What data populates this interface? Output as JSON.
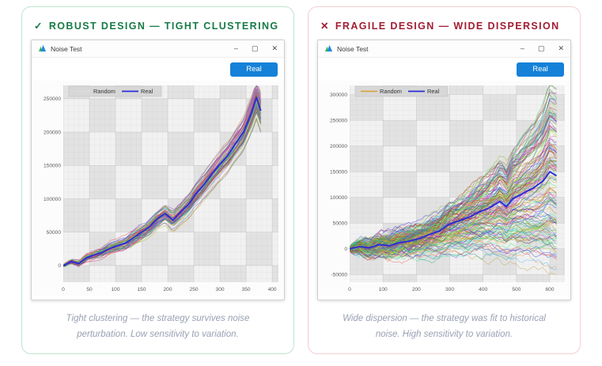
{
  "panels": [
    {
      "id": "robust",
      "header": {
        "icon": "✓",
        "label": "ROBUST DESIGN — TIGHT CLUSTERING"
      },
      "accent": "#177a48",
      "border_color": "#bce6cb",
      "window": {
        "app_icon": "noise-test-app-logo",
        "title": "Noise Test",
        "controls": {
          "minimize": "–",
          "maximize": "▢",
          "close": "✕"
        },
        "button_label": "Real",
        "button_color": "#1581d8"
      },
      "caption": "Tight clustering — the strategy survives noise perturbation. Low sensitivity to variation.",
      "chart_data": {
        "type": "line",
        "title": "",
        "xlabel": "",
        "ylabel": "",
        "xlim": [
          0,
          412
        ],
        "ylim": [
          -25000,
          270000
        ],
        "x_ticks": [
          0,
          50,
          100,
          150,
          200,
          250,
          300,
          350,
          400
        ],
        "y_ticks": [
          0,
          50000,
          100000,
          150000,
          200000,
          250000
        ],
        "grid": true,
        "legend_position": "top-left",
        "legend": [
          {
            "name": "Random",
            "color": "#dcdcdc"
          },
          {
            "name": "Real",
            "color": "#2a2cd6"
          }
        ],
        "series": [
          {
            "name": "Real",
            "color": "#2a2cd6",
            "x": [
              0,
              15,
              30,
              45,
              60,
              75,
              90,
              105,
              120,
              135,
              150,
              165,
              180,
              195,
              210,
              225,
              240,
              255,
              270,
              285,
              300,
              315,
              330,
              345,
              360,
              370,
              378
            ],
            "y": [
              0,
              6000,
              3000,
              12000,
              16000,
              20000,
              26000,
              30000,
              34000,
              42000,
              50000,
              58000,
              70000,
              78000,
              68000,
              80000,
              92000,
              108000,
              122000,
              138000,
              152000,
              165000,
              183000,
              200000,
              228000,
              252000,
              232000
            ]
          }
        ],
        "random_cloud": {
          "name": "Random",
          "count": 60,
          "walk_sigma": 1500,
          "drift": 0.1,
          "seed": 7,
          "x_end": 378
        }
      }
    },
    {
      "id": "fragile",
      "header": {
        "icon": "✕",
        "label": "FRAGILE DESIGN — WIDE DISPERSION"
      },
      "accent": "#a11d33",
      "border_color": "#f5cdd1",
      "window": {
        "app_icon": "noise-test-app-logo",
        "title": "Noise Test",
        "controls": {
          "minimize": "–",
          "maximize": "▢",
          "close": "✕"
        },
        "button_label": "Real",
        "button_color": "#1581d8"
      },
      "caption": "Wide dispersion — the strategy was fit to historical noise. High sensitivity to variation.",
      "chart_data": {
        "type": "line",
        "title": "",
        "xlabel": "",
        "ylabel": "",
        "xlim": [
          0,
          645
        ],
        "ylim": [
          -65000,
          318000
        ],
        "x_ticks": [
          0,
          100,
          200,
          300,
          400,
          500,
          600
        ],
        "y_ticks": [
          -50000,
          0,
          50000,
          100000,
          150000,
          200000,
          250000,
          300000
        ],
        "grid": true,
        "legend_position": "top-left",
        "legend": [
          {
            "name": "Random",
            "color": "#dd9f33"
          },
          {
            "name": "Real",
            "color": "#2a2cd6"
          }
        ],
        "series": [
          {
            "name": "Real",
            "color": "#2a2cd6",
            "x": [
              0,
              30,
              60,
              90,
              120,
              150,
              180,
              210,
              240,
              270,
              300,
              330,
              360,
              390,
              420,
              450,
              470,
              490,
              520,
              550,
              580,
              600,
              620
            ],
            "y": [
              0,
              4000,
              2000,
              8000,
              6000,
              12000,
              15000,
              20000,
              28000,
              35000,
              48000,
              55000,
              62000,
              72000,
              80000,
              92000,
              82000,
              98000,
              108000,
              118000,
              132000,
              150000,
              142000
            ]
          }
        ],
        "random_cloud": {
          "name": "Random",
          "count": 140,
          "walk_sigma": 5200,
          "drift": 1.1,
          "seed": 21,
          "x_end": 620
        }
      }
    }
  ]
}
